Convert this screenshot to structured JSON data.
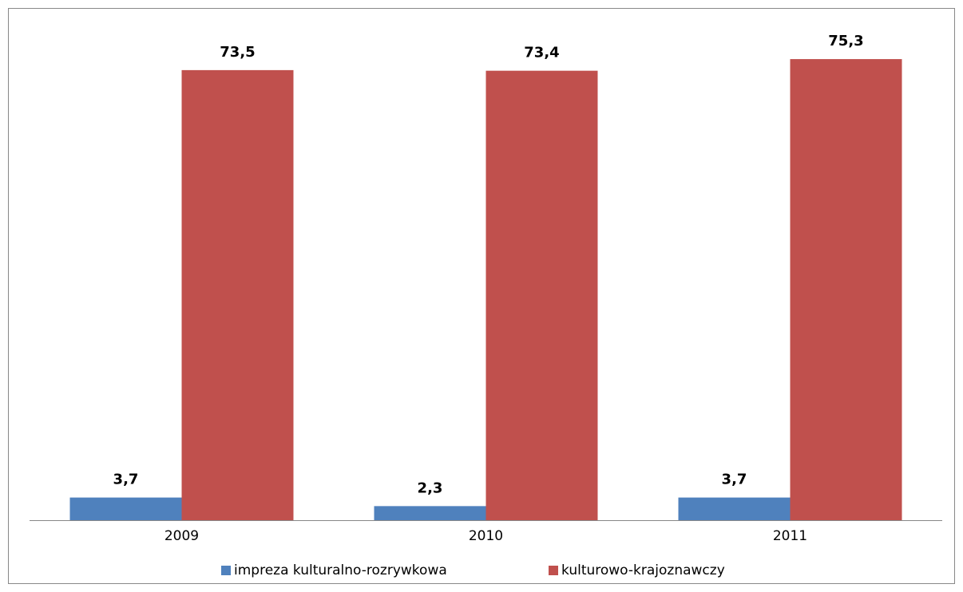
{
  "chart_data": {
    "type": "bar",
    "categories": [
      "2009",
      "2010",
      "2011"
    ],
    "series": [
      {
        "name": "impreza kulturalno-rozrywkowa",
        "color": "#4f81bd",
        "values": [
          3.7,
          2.3,
          3.7
        ],
        "value_labels": [
          "3,7",
          "2,3",
          "3,7"
        ]
      },
      {
        "name": "kulturowo-krajoznawczy",
        "color": "#c0504d",
        "values": [
          73.5,
          73.4,
          75.3
        ],
        "value_labels": [
          "73,5",
          "73,4",
          "75,3"
        ]
      }
    ],
    "ylim": [
      0,
      80
    ],
    "legend": "bottom"
  }
}
